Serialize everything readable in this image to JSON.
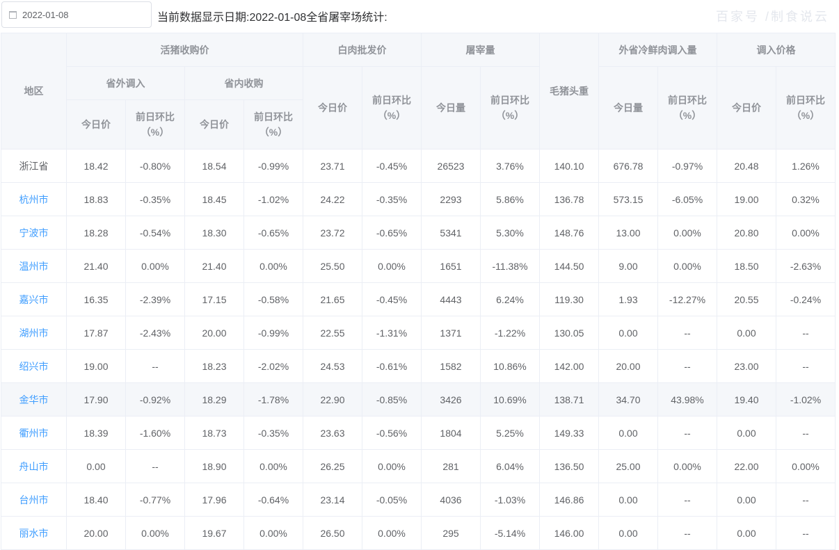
{
  "date_picker": {
    "value": "2022-01-08",
    "icon": "calendar-icon"
  },
  "title": "当前数据显示日期:2022-01-08全省屠宰场统计:",
  "headers": {
    "region": "地区",
    "live_pig": "活猪收购价",
    "out_province": "省外调入",
    "in_province": "省内收购",
    "white_meat": "白肉批发价",
    "slaughter": "屠宰量",
    "hog_weight": "毛猪头重",
    "cold_meat": "外省冷鲜肉调入量",
    "import_price": "调入价格",
    "today_price": "今日价",
    "today_qty": "今日量",
    "change": "前日环比",
    "pct": "（%）"
  },
  "rows": [
    [
      "浙江省",
      "18.42",
      "-0.80%",
      "18.54",
      "-0.99%",
      "23.71",
      "-0.45%",
      "26523",
      "3.76%",
      "140.10",
      "676.78",
      "-0.97%",
      "20.48",
      "1.26%"
    ],
    [
      "杭州市",
      "18.83",
      "-0.35%",
      "18.45",
      "-1.02%",
      "24.22",
      "-0.35%",
      "2293",
      "5.86%",
      "136.78",
      "573.15",
      "-6.05%",
      "19.00",
      "0.32%"
    ],
    [
      "宁波市",
      "18.28",
      "-0.54%",
      "18.30",
      "-0.65%",
      "23.72",
      "-0.65%",
      "5341",
      "5.30%",
      "148.76",
      "13.00",
      "0.00%",
      "20.80",
      "0.00%"
    ],
    [
      "温州市",
      "21.40",
      "0.00%",
      "21.40",
      "0.00%",
      "25.50",
      "0.00%",
      "1651",
      "-11.38%",
      "144.50",
      "9.00",
      "0.00%",
      "18.50",
      "-2.63%"
    ],
    [
      "嘉兴市",
      "16.35",
      "-2.39%",
      "17.15",
      "-0.58%",
      "21.65",
      "-0.45%",
      "4443",
      "6.24%",
      "119.30",
      "1.93",
      "-12.27%",
      "20.55",
      "-0.24%"
    ],
    [
      "湖州市",
      "17.87",
      "-2.43%",
      "20.00",
      "-0.99%",
      "22.55",
      "-1.31%",
      "1371",
      "-1.22%",
      "130.05",
      "0.00",
      "--",
      "0.00",
      "--"
    ],
    [
      "绍兴市",
      "19.00",
      "--",
      "18.23",
      "-2.02%",
      "24.53",
      "-0.61%",
      "1582",
      "10.86%",
      "142.00",
      "20.00",
      "--",
      "23.00",
      "--"
    ],
    [
      "金华市",
      "17.90",
      "-0.92%",
      "18.29",
      "-1.78%",
      "22.90",
      "-0.85%",
      "3426",
      "10.69%",
      "138.71",
      "34.70",
      "43.98%",
      "19.40",
      "-1.02%"
    ],
    [
      "衢州市",
      "18.39",
      "-1.60%",
      "18.73",
      "-0.35%",
      "23.63",
      "-0.56%",
      "1804",
      "5.25%",
      "149.33",
      "0.00",
      "--",
      "0.00",
      "--"
    ],
    [
      "舟山市",
      "0.00",
      "--",
      "18.90",
      "0.00%",
      "26.25",
      "0.00%",
      "281",
      "6.04%",
      "136.50",
      "25.00",
      "0.00%",
      "22.00",
      "0.00%"
    ],
    [
      "台州市",
      "18.40",
      "-0.77%",
      "17.96",
      "-0.64%",
      "23.14",
      "-0.05%",
      "4036",
      "-1.03%",
      "146.86",
      "0.00",
      "--",
      "0.00",
      "--"
    ],
    [
      "丽水市",
      "20.00",
      "0.00%",
      "19.67",
      "0.00%",
      "26.50",
      "0.00%",
      "295",
      "-5.14%",
      "146.00",
      "0.00",
      "--",
      "0.00",
      "--"
    ]
  ],
  "highlighted_row": "金华市",
  "colors": {
    "link": "#409eff",
    "header_bg": "#f5f7fa",
    "border": "#ebeef5"
  },
  "watermark": "百家号 /制食说云"
}
